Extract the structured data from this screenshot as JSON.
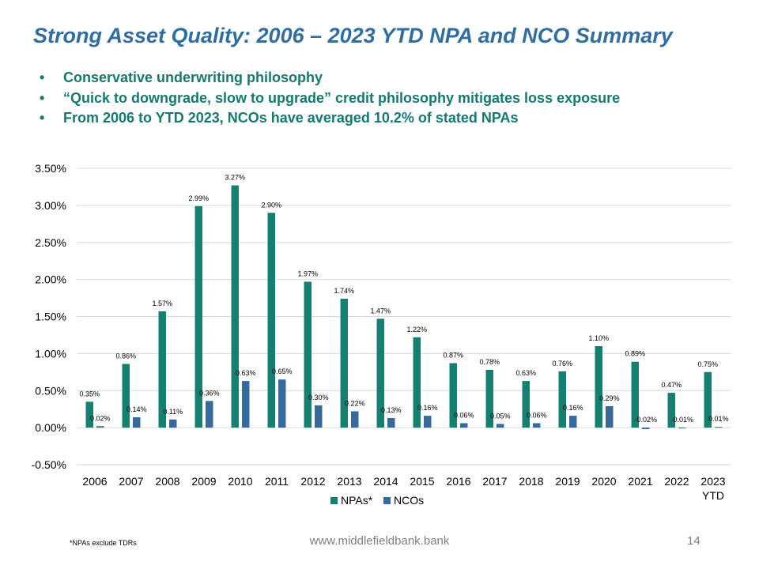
{
  "slide": {
    "title": "Strong Asset Quality: 2006 – 2023 YTD NPA and NCO Summary",
    "bullets": [
      "Conservative underwriting philosophy",
      "“Quick to downgrade, slow to upgrade” credit philosophy mitigates loss exposure",
      "From 2006 to YTD 2023, NCOs have averaged 10.2% of stated NPAs"
    ],
    "bullet_symbol": "•",
    "footnote": "*NPAs exclude TDRs",
    "website": "www.middlefieldbank.bank",
    "page_number": "14"
  },
  "chart_data": {
    "type": "bar",
    "categories": [
      "2006",
      "2007",
      "2008",
      "2009",
      "2010",
      "2011",
      "2012",
      "2013",
      "2014",
      "2015",
      "2016",
      "2017",
      "2018",
      "2019",
      "2020",
      "2021",
      "2022",
      "2023 YTD"
    ],
    "series": [
      {
        "name": "NPAs*",
        "color": "#168070",
        "values": [
          0.35,
          0.86,
          1.57,
          2.99,
          3.27,
          2.9,
          1.97,
          1.74,
          1.47,
          1.22,
          0.87,
          0.78,
          0.63,
          0.76,
          1.1,
          0.89,
          0.47,
          0.75
        ],
        "labels": [
          "0.35%",
          "0.86%",
          "1.57%",
          "2.99%",
          "3.27%",
          "2.90%",
          "1.97%",
          "1.74%",
          "1.47%",
          "1.22%",
          "0.87%",
          "0.78%",
          "0.63%",
          "0.76%",
          "1.10%",
          "0.89%",
          "0.47%",
          "0.75%"
        ]
      },
      {
        "name": "NCOs",
        "color": "#376a9b",
        "values": [
          0.02,
          0.14,
          0.11,
          0.36,
          0.63,
          0.65,
          0.3,
          0.22,
          0.13,
          0.16,
          0.06,
          0.05,
          0.06,
          0.16,
          0.29,
          -0.02,
          -0.01,
          0.01
        ],
        "labels": [
          "0.02%",
          "0.14%",
          "0.11%",
          "0.36%",
          "0.63%",
          "0.65%",
          "0.30%",
          "0.22%",
          "0.13%",
          "0.16%",
          "0.06%",
          "0.05%",
          "0.06%",
          "0.16%",
          "0.29%",
          "-0.02%",
          "-0.01%",
          "0.01%"
        ]
      }
    ],
    "ylim": [
      -0.5,
      3.5
    ],
    "yticks": [
      -0.5,
      0.0,
      0.5,
      1.0,
      1.5,
      2.0,
      2.5,
      3.0,
      3.5
    ],
    "ytick_labels": [
      "-0.50%",
      "0.00%",
      "0.50%",
      "1.00%",
      "1.50%",
      "2.00%",
      "2.50%",
      "3.00%",
      "3.50%"
    ],
    "grid": true,
    "legend": "bottom-center"
  }
}
